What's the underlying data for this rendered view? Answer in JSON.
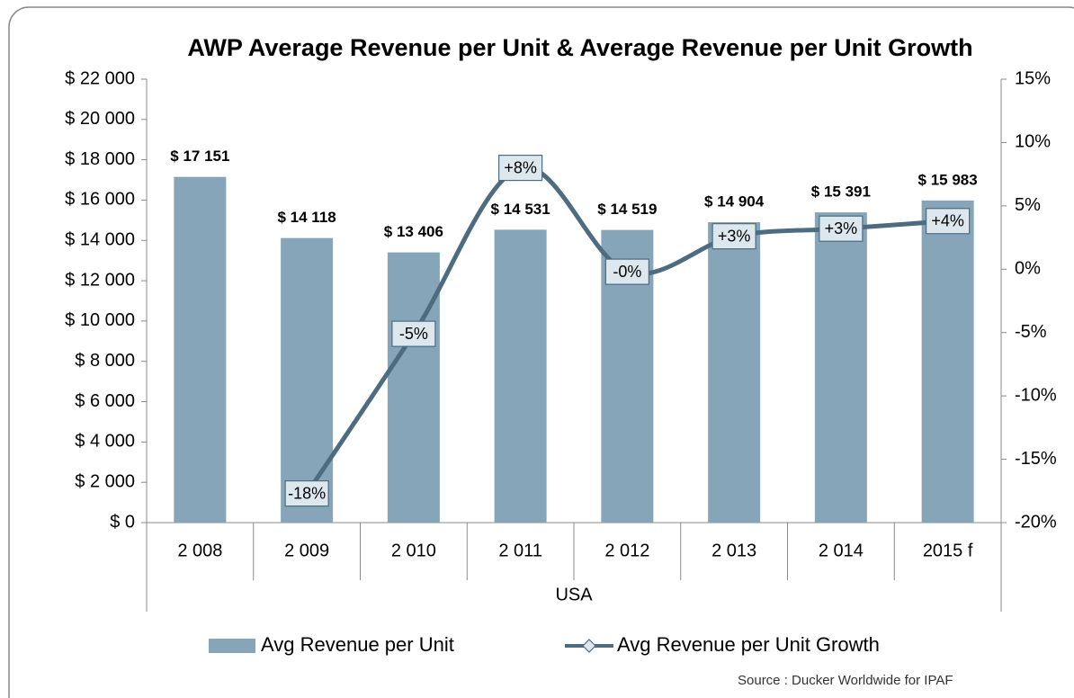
{
  "chart_data": {
    "type": "bar",
    "title": "AWP Average Revenue per Unit & Average Revenue per Unit Growth",
    "categories": [
      "2 008",
      "2 009",
      "2 010",
      "2 011",
      "2 012",
      "2 013",
      "2 014",
      "2015 f"
    ],
    "x_group_label": "USA",
    "series": [
      {
        "name": "Avg Revenue per Unit",
        "type": "bar",
        "color": "#87a5b9",
        "values": [
          17151,
          14118,
          13406,
          14531,
          14519,
          14904,
          15391,
          15983
        ],
        "value_labels": [
          "$ 17 151",
          "$ 14 118",
          "$ 13 406",
          "$ 14 531",
          "$ 14 519",
          "$ 14 904",
          "$ 15 391",
          "$ 15 983"
        ]
      },
      {
        "name": "Avg Revenue per Unit Growth",
        "type": "line",
        "axis": "y2",
        "color": "#4d6c80",
        "values": [
          null,
          -17.7,
          -5.1,
          8.0,
          -0.2,
          2.6,
          3.2,
          3.8
        ],
        "value_labels": [
          null,
          "-18%",
          "-5%",
          "+8%",
          "-0%",
          "+3%",
          "+3%",
          "+4%"
        ]
      }
    ],
    "ylim": [
      0,
      22000
    ],
    "yticks": [
      {
        "value": 0,
        "label": "$ 0"
      },
      {
        "value": 2000,
        "label": "$ 2 000"
      },
      {
        "value": 4000,
        "label": "$ 4 000"
      },
      {
        "value": 6000,
        "label": "$ 6 000"
      },
      {
        "value": 8000,
        "label": "$ 8 000"
      },
      {
        "value": 10000,
        "label": "$ 10 000"
      },
      {
        "value": 12000,
        "label": "$ 12 000"
      },
      {
        "value": 14000,
        "label": "$ 14 000"
      },
      {
        "value": 16000,
        "label": "$ 16 000"
      },
      {
        "value": 18000,
        "label": "$ 18 000"
      },
      {
        "value": 20000,
        "label": "$ 20 000"
      },
      {
        "value": 22000,
        "label": "$ 22 000"
      }
    ],
    "y2lim": [
      -20,
      15
    ],
    "y2ticks": [
      {
        "value": -20,
        "label": "-20%"
      },
      {
        "value": -15,
        "label": "-15%"
      },
      {
        "value": -10,
        "label": "-10%"
      },
      {
        "value": -5,
        "label": "-5%"
      },
      {
        "value": 0,
        "label": "0%"
      },
      {
        "value": 5,
        "label": "5%"
      },
      {
        "value": 10,
        "label": "10%"
      },
      {
        "value": 15,
        "label": "15%"
      }
    ],
    "legend": "bottom",
    "source": "Source : Ducker Worldwide for IPAF"
  }
}
